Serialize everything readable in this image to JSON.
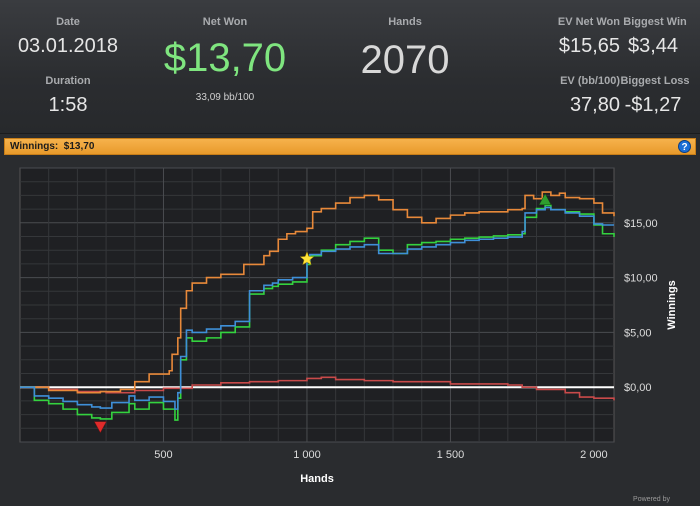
{
  "stats": {
    "date_label": "Date",
    "date": "03.01.2018",
    "duration_label": "Duration",
    "duration": "1:58",
    "netwon_label": "Net Won",
    "netwon": "$13,70",
    "netwon_sub": "33,09 bb/100",
    "hands_label": "Hands",
    "hands": "2070",
    "ev_netwon_label": "EV Net Won",
    "ev_netwon": "$15,65",
    "biggest_win_label": "Biggest Win",
    "biggest_win": "$3,44",
    "ev_bb_label": "EV (bb/100)",
    "ev_bb": "37,80",
    "biggest_loss_label": "Biggest Loss",
    "biggest_loss": "-$1,27"
  },
  "panel": {
    "title_prefix": "Winnings:",
    "title_value": "$13,70",
    "help_glyph": "?",
    "footer": "Powered by"
  },
  "colors": {
    "orange": "#e8893a",
    "green": "#34d23f",
    "blue": "#3f8fd8",
    "red": "#c94a4a",
    "zero_line": "#ffffff"
  },
  "chart_data": {
    "type": "line",
    "xlabel": "Hands",
    "ylabel": "Winnings",
    "xlim": [
      0,
      2070
    ],
    "ylim": [
      -5,
      20
    ],
    "x_ticks": [
      500,
      1000,
      1500,
      2000
    ],
    "x_tick_labels": [
      "500",
      "1 000",
      "1 500",
      "2 000"
    ],
    "y_ticks": [
      0,
      5,
      10,
      15
    ],
    "y_tick_labels": [
      "$0,00",
      "$5,00",
      "$10,00",
      "$15,00"
    ],
    "grid": true,
    "series": [
      {
        "color": "orange",
        "x": [
          0,
          100,
          200,
          280,
          350,
          400,
          450,
          520,
          530,
          550,
          560,
          580,
          600,
          650,
          700,
          780,
          850,
          870,
          900,
          930,
          960,
          990,
          1000,
          1020,
          1050,
          1100,
          1150,
          1200,
          1250,
          1300,
          1350,
          1400,
          1450,
          1500,
          1550,
          1600,
          1650,
          1700,
          1720,
          1750,
          1760,
          1790,
          1820,
          1850,
          1880,
          1900,
          1950,
          2000,
          2030,
          2070
        ],
        "y": [
          0,
          -0.3,
          -0.5,
          -0.4,
          -0.2,
          0.5,
          1.2,
          1.5,
          3.0,
          4.5,
          7.2,
          8.8,
          9.5,
          10.0,
          10.3,
          11.2,
          12.0,
          12.4,
          13.5,
          14.0,
          14.2,
          14.2,
          14.5,
          16.0,
          16.3,
          16.8,
          17.3,
          17.5,
          17.1,
          16.2,
          15.5,
          15.0,
          15.4,
          15.7,
          15.9,
          16.0,
          16.0,
          16.2,
          16.2,
          16.3,
          17.5,
          17.2,
          17.8,
          17.5,
          17.7,
          17.3,
          17.2,
          16.8,
          15.9,
          15.6
        ]
      },
      {
        "color": "green",
        "x": [
          0,
          50,
          100,
          150,
          200,
          250,
          280,
          320,
          380,
          400,
          450,
          500,
          540,
          550,
          560,
          580,
          600,
          650,
          700,
          750,
          800,
          850,
          880,
          900,
          950,
          1000,
          1010,
          1050,
          1100,
          1150,
          1200,
          1250,
          1300,
          1350,
          1400,
          1450,
          1500,
          1550,
          1600,
          1650,
          1700,
          1750,
          1760,
          1800,
          1830,
          1850,
          1900,
          1950,
          2000,
          2030,
          2070
        ],
        "y": [
          0,
          -1.2,
          -1.5,
          -2.0,
          -2.5,
          -2.8,
          -2.9,
          -2.3,
          -1.5,
          -2.0,
          -1.4,
          -2.0,
          -3.0,
          -1.0,
          2.5,
          4.5,
          4.2,
          4.5,
          5.0,
          5.5,
          8.5,
          9.0,
          9.2,
          9.4,
          9.6,
          11.2,
          12.0,
          12.5,
          13.0,
          13.3,
          13.6,
          12.5,
          12.2,
          13.0,
          13.2,
          13.3,
          13.5,
          13.6,
          13.7,
          13.8,
          13.9,
          14.0,
          15.5,
          16.3,
          16.6,
          16.2,
          16.0,
          15.8,
          14.8,
          14.0,
          13.7
        ]
      },
      {
        "color": "blue",
        "x": [
          0,
          50,
          100,
          150,
          200,
          250,
          280,
          320,
          380,
          400,
          450,
          500,
          540,
          550,
          560,
          580,
          600,
          650,
          700,
          750,
          800,
          850,
          880,
          900,
          950,
          1000,
          1010,
          1050,
          1100,
          1150,
          1200,
          1250,
          1300,
          1350,
          1400,
          1450,
          1500,
          1550,
          1600,
          1650,
          1700,
          1750,
          1760,
          1800,
          1830,
          1850,
          1900,
          1950,
          2000,
          2030,
          2070
        ],
        "y": [
          0,
          -0.8,
          -1.0,
          -1.3,
          -1.6,
          -1.8,
          -1.9,
          -1.4,
          -0.8,
          -1.2,
          -0.9,
          -1.3,
          -2.0,
          -0.5,
          2.8,
          5.2,
          5.0,
          5.3,
          5.6,
          6.0,
          8.8,
          9.3,
          9.5,
          9.8,
          10.0,
          11.4,
          12.1,
          12.4,
          12.6,
          12.8,
          13.0,
          12.2,
          12.2,
          12.6,
          12.8,
          13.0,
          13.2,
          13.4,
          13.5,
          13.6,
          13.7,
          14.2,
          15.9,
          16.2,
          16.4,
          16.2,
          15.9,
          15.6,
          14.9,
          14.8,
          14.8
        ]
      },
      {
        "color": "red",
        "x": [
          0,
          100,
          200,
          300,
          400,
          500,
          600,
          700,
          800,
          900,
          1000,
          1050,
          1100,
          1200,
          1300,
          1400,
          1500,
          1600,
          1700,
          1750,
          1800,
          1900,
          1950,
          2000,
          2070
        ],
        "y": [
          0,
          -0.2,
          -0.4,
          -0.5,
          -0.3,
          -0.1,
          0.2,
          0.4,
          0.5,
          0.6,
          0.8,
          0.9,
          0.7,
          0.6,
          0.5,
          0.5,
          0.3,
          0.3,
          0.2,
          0.0,
          -0.2,
          -0.5,
          -0.9,
          -1.0,
          -1.2
        ]
      }
    ],
    "markers": [
      {
        "shape": "triangle-down",
        "color": "#e02b2b",
        "x": 280,
        "y": -3.6
      },
      {
        "shape": "star",
        "color": "#ffe43a",
        "x": 1000,
        "y": 11.7
      },
      {
        "shape": "triangle-up",
        "color": "#2f9e2f",
        "x": 1830,
        "y": 17.1
      }
    ]
  }
}
